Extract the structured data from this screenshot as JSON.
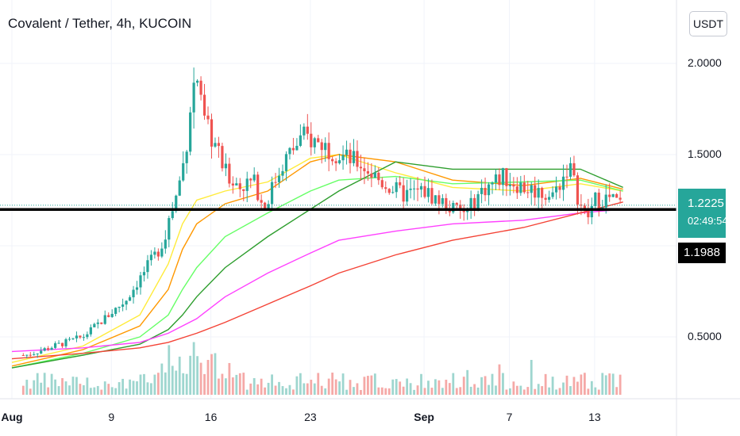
{
  "header": {
    "title": "Covalent / Tether, 4h, KUCOIN",
    "currency_button": "USDT"
  },
  "price": {
    "current": "1.2225",
    "countdown": "02:49:54",
    "level": "1.1988",
    "current_color": "#26a69a"
  },
  "chart_data": {
    "type": "candlestick",
    "title": "Covalent / Tether, 4h, KUCOIN",
    "y_ticks": [
      "2.0000",
      "1.5000",
      "0.5000"
    ],
    "x_ticks": [
      {
        "label": "Aug",
        "bold": true
      },
      {
        "label": "9",
        "bold": false
      },
      {
        "label": "16",
        "bold": false
      },
      {
        "label": "23",
        "bold": false
      },
      {
        "label": "Sep",
        "bold": true
      },
      {
        "label": "7",
        "bold": false
      },
      {
        "label": "13",
        "bold": false
      }
    ],
    "horizontal_level": 1.1988,
    "last_price": 1.2225,
    "price_path": [
      [
        1,
        0.4
      ],
      [
        5,
        0.5
      ],
      [
        8,
        0.7
      ],
      [
        10.5,
        1.0
      ],
      [
        11.5,
        1.25
      ],
      [
        12.2,
        1.5
      ],
      [
        12.6,
        1.8
      ],
      [
        13,
        1.95
      ],
      [
        13.4,
        1.7
      ],
      [
        14.3,
        1.55
      ],
      [
        15,
        1.4
      ],
      [
        16,
        1.33
      ],
      [
        17,
        1.35
      ],
      [
        17.8,
        1.22
      ],
      [
        19,
        1.45
      ],
      [
        20.5,
        1.6
      ],
      [
        22,
        1.55
      ],
      [
        23,
        1.5
      ],
      [
        24.5,
        1.45
      ],
      [
        26,
        1.35
      ],
      [
        27.5,
        1.28
      ],
      [
        29,
        1.3
      ],
      [
        30,
        1.25
      ],
      [
        31,
        1.2
      ],
      [
        32,
        1.18
      ],
      [
        33,
        1.3
      ],
      [
        34.5,
        1.38
      ],
      [
        36,
        1.32
      ],
      [
        37,
        1.3
      ],
      [
        38,
        1.27
      ],
      [
        38.8,
        1.38
      ],
      [
        39.2,
        1.45
      ],
      [
        39.6,
        1.33
      ],
      [
        40,
        1.22
      ],
      [
        40.5,
        1.15
      ],
      [
        41,
        1.25
      ],
      [
        42,
        1.26
      ],
      [
        43,
        1.22
      ]
    ],
    "moving_averages": [
      {
        "color": "#ffeb3b",
        "points": [
          [
            0,
            0.36
          ],
          [
            5,
            0.45
          ],
          [
            9,
            0.62
          ],
          [
            11,
            0.9
          ],
          [
            12,
            1.12
          ],
          [
            13,
            1.25
          ],
          [
            15,
            1.3
          ],
          [
            18,
            1.35
          ],
          [
            21,
            1.48
          ],
          [
            23,
            1.5
          ],
          [
            27,
            1.4
          ],
          [
            31,
            1.32
          ],
          [
            36,
            1.3
          ],
          [
            40,
            1.34
          ],
          [
            43,
            1.3
          ]
        ]
      },
      {
        "color": "#ff9800",
        "points": [
          [
            0,
            0.34
          ],
          [
            5,
            0.43
          ],
          [
            9,
            0.56
          ],
          [
            11,
            0.76
          ],
          [
            12,
            0.98
          ],
          [
            13,
            1.12
          ],
          [
            15,
            1.23
          ],
          [
            18,
            1.3
          ],
          [
            21,
            1.46
          ],
          [
            23,
            1.5
          ],
          [
            27,
            1.46
          ],
          [
            31,
            1.36
          ],
          [
            36,
            1.33
          ],
          [
            40,
            1.37
          ],
          [
            43,
            1.31
          ]
        ]
      },
      {
        "color": "#66ff66",
        "points": [
          [
            0,
            0.33
          ],
          [
            5,
            0.41
          ],
          [
            9,
            0.5
          ],
          [
            11,
            0.62
          ],
          [
            12,
            0.76
          ],
          [
            13,
            0.88
          ],
          [
            15,
            1.05
          ],
          [
            18,
            1.18
          ],
          [
            21,
            1.3
          ],
          [
            23,
            1.36
          ],
          [
            27,
            1.38
          ],
          [
            31,
            1.34
          ],
          [
            36,
            1.35
          ],
          [
            40,
            1.36
          ],
          [
            43,
            1.3
          ]
        ]
      },
      {
        "color": "#2e9e2e",
        "points": [
          [
            0,
            0.33
          ],
          [
            5,
            0.4
          ],
          [
            9,
            0.46
          ],
          [
            11,
            0.54
          ],
          [
            12,
            0.62
          ],
          [
            13,
            0.72
          ],
          [
            15,
            0.88
          ],
          [
            18,
            1.05
          ],
          [
            21,
            1.2
          ],
          [
            23,
            1.3
          ],
          [
            27,
            1.46
          ],
          [
            31,
            1.42
          ],
          [
            36,
            1.42
          ],
          [
            40,
            1.42
          ],
          [
            43,
            1.32
          ]
        ]
      },
      {
        "color": "#ff40ff",
        "points": [
          [
            0,
            0.42
          ],
          [
            5,
            0.44
          ],
          [
            9,
            0.47
          ],
          [
            11,
            0.52
          ],
          [
            13,
            0.6
          ],
          [
            15,
            0.72
          ],
          [
            18,
            0.85
          ],
          [
            21,
            0.96
          ],
          [
            23,
            1.03
          ],
          [
            27,
            1.08
          ],
          [
            31,
            1.12
          ],
          [
            36,
            1.14
          ],
          [
            40,
            1.18
          ],
          [
            43,
            1.2
          ]
        ]
      },
      {
        "color": "#f44336",
        "points": [
          [
            0,
            0.38
          ],
          [
            5,
            0.41
          ],
          [
            9,
            0.44
          ],
          [
            11,
            0.47
          ],
          [
            13,
            0.52
          ],
          [
            15,
            0.58
          ],
          [
            18,
            0.68
          ],
          [
            21,
            0.78
          ],
          [
            23,
            0.85
          ],
          [
            27,
            0.95
          ],
          [
            31,
            1.03
          ],
          [
            36,
            1.1
          ],
          [
            40,
            1.18
          ],
          [
            43,
            1.24
          ]
        ]
      }
    ]
  }
}
